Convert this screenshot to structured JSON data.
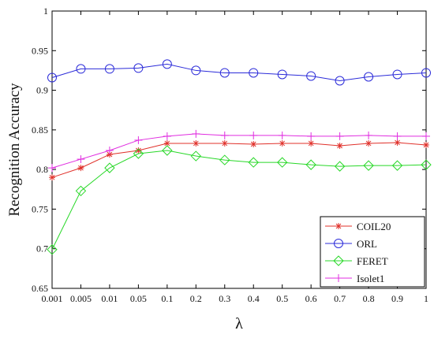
{
  "chart_data": {
    "type": "line",
    "xlabel": "λ",
    "ylabel": "Recognition Accuracy",
    "categories": [
      "0.001",
      "0.005",
      "0.01",
      "0.05",
      "0.1",
      "0.2",
      "0.3",
      "0.4",
      "0.5",
      "0.6",
      "0.7",
      "0.8",
      "0.9",
      "1"
    ],
    "ylim": [
      0.65,
      1
    ],
    "yticks": [
      "0.65",
      "0.7",
      "0.75",
      "0.8",
      "0.85",
      "0.9",
      "0.95",
      "1"
    ],
    "grid": false,
    "legend_position": "bottom-right",
    "series": [
      {
        "name": "COIL20",
        "color": "#e0302a",
        "marker": "asterisk",
        "values": [
          0.79,
          0.802,
          0.819,
          0.824,
          0.833,
          0.833,
          0.833,
          0.832,
          0.833,
          0.833,
          0.83,
          0.833,
          0.834,
          0.831
        ]
      },
      {
        "name": "ORL",
        "color": "#2b2bd9",
        "marker": "circle",
        "values": [
          0.916,
          0.927,
          0.927,
          0.928,
          0.933,
          0.925,
          0.922,
          0.922,
          0.92,
          0.918,
          0.912,
          0.917,
          0.92,
          0.922
        ]
      },
      {
        "name": "FERET",
        "color": "#28d828",
        "marker": "diamond",
        "values": [
          0.699,
          0.773,
          0.802,
          0.82,
          0.824,
          0.817,
          0.812,
          0.809,
          0.809,
          0.806,
          0.804,
          0.805,
          0.805,
          0.806
        ]
      },
      {
        "name": "Isolet1",
        "color": "#e02ee0",
        "marker": "plus",
        "values": [
          0.802,
          0.813,
          0.824,
          0.837,
          0.842,
          0.845,
          0.843,
          0.843,
          0.843,
          0.842,
          0.842,
          0.843,
          0.842,
          0.842
        ]
      }
    ]
  }
}
